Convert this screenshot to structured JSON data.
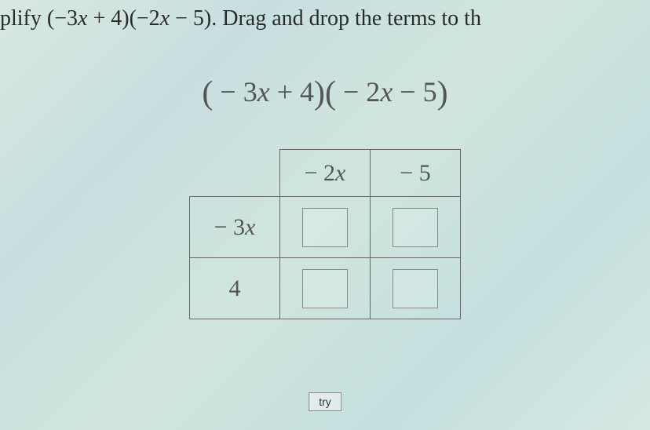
{
  "instruction": {
    "prefix": "plify ",
    "expr_part1": "(−3",
    "expr_var1": "x",
    "expr_part2": " + 4)(−2",
    "expr_var2": "x",
    "expr_part3": " − 5)",
    "suffix": ". Drag and drop the terms to th"
  },
  "main_expression": {
    "open1": "(",
    "part1": " − 3",
    "var1": "x",
    "part2": " + 4",
    "close1": ")",
    "open2": "(",
    "part3": " − 2",
    "var2": "x",
    "part4": " − 5",
    "close2": ")"
  },
  "table": {
    "col_headers": [
      {
        "prefix": "− 2",
        "var": "x"
      },
      {
        "prefix": "− 5",
        "var": ""
      }
    ],
    "row_headers": [
      {
        "prefix": "− 3",
        "var": "x"
      },
      {
        "prefix": "4",
        "var": ""
      }
    ]
  },
  "button": {
    "try_label": "try"
  },
  "colors": {
    "text_main": "#2a2a2a",
    "text_math": "#555555",
    "border": "#666666",
    "background_tint": "#d0e5dd"
  }
}
